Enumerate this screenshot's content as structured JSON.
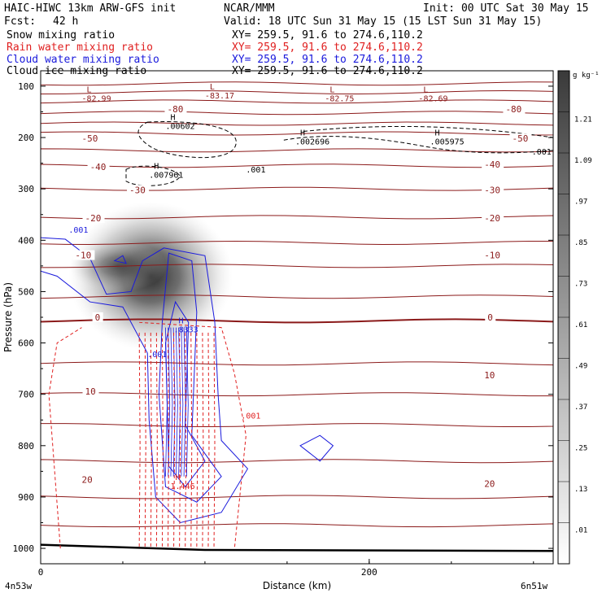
{
  "header": {
    "model": "HAIC-HIWC 13km ARW-GFS init",
    "org": "NCAR/MMM",
    "init": "Init: 00 UTC Sat 30 May 15",
    "fcst_label": "Fcst:",
    "fcst_value": "42 h",
    "valid": "Valid: 18 UTC Sun 31 May 15 (15 LST Sun 31 May 15)"
  },
  "legend": [
    {
      "name": "Snow mixing ratio",
      "xy": "XY= 259.5, 91.6 to 274.6,110.2",
      "color": "#000000"
    },
    {
      "name": "Rain water mixing ratio",
      "xy": "XY= 259.5, 91.6 to 274.6,110.2",
      "color": "#e02020"
    },
    {
      "name": "Cloud water mixing ratio",
      "xy": "XY= 259.5, 91.6 to 274.6,110.2",
      "color": "#1a1adc"
    },
    {
      "name": "Cloud ice mixing ratio",
      "xy": "XY= 259.5, 91.6 to 274.6,110.2",
      "color": "#000000"
    }
  ],
  "chart_data": {
    "type": "heatmap",
    "xlabel": "Distance (km)",
    "ylabel": "Pressure (hPa)",
    "xlim": [
      0,
      312
    ],
    "ylim": [
      1030,
      70
    ],
    "x_ticks": [
      0,
      200
    ],
    "y_ticks": [
      100,
      200,
      300,
      400,
      500,
      600,
      700,
      800,
      900,
      1000
    ],
    "x_endpoints": [
      "4n53w",
      "6n51w"
    ],
    "colorbar": {
      "unit": "g kg⁻¹",
      "labels": [
        ".01",
        ".13",
        ".25",
        ".37",
        ".49",
        ".61",
        ".73",
        ".85",
        ".97",
        "1.09",
        "1.21"
      ],
      "values": [
        0.01,
        0.13,
        0.25,
        0.37,
        0.49,
        0.61,
        0.73,
        0.85,
        0.97,
        1.09,
        1.21
      ]
    },
    "snow_shading": {
      "description": "Snow mixing ratio shaded maximum",
      "center_x": 67,
      "center_p": 470,
      "max": 1.15,
      "extent_x": [
        0,
        100
      ],
      "extent_p": [
        270,
        560
      ]
    },
    "temperature_labels": [
      {
        "x": 54,
        "p": 305,
        "text": "-30"
      },
      {
        "x": 270,
        "p": 305,
        "text": "-30"
      },
      {
        "x": 30,
        "p": 260,
        "text": "-40"
      },
      {
        "x": 270,
        "p": 255,
        "text": "-40"
      },
      {
        "x": 25,
        "p": 205,
        "text": "-50"
      },
      {
        "x": 287,
        "p": 205,
        "text": "-50"
      },
      {
        "x": 77,
        "p": 148,
        "text": "-80"
      },
      {
        "x": 283,
        "p": 148,
        "text": "-80"
      },
      {
        "x": 27,
        "p": 360,
        "text": "-20"
      },
      {
        "x": 270,
        "p": 360,
        "text": "-20"
      },
      {
        "x": 21,
        "p": 432,
        "text": "-10"
      },
      {
        "x": 270,
        "p": 432,
        "text": "-10"
      },
      {
        "x": 33,
        "p": 553,
        "text": "0"
      },
      {
        "x": 272,
        "p": 553,
        "text": "0"
      },
      {
        "x": 27,
        "p": 697,
        "text": "10"
      },
      {
        "x": 270,
        "p": 666,
        "text": "10"
      },
      {
        "x": 25,
        "p": 869,
        "text": "20"
      },
      {
        "x": 270,
        "p": 877,
        "text": "20"
      }
    ],
    "extrema_labels": [
      {
        "type": "L",
        "x": 25,
        "p": 128,
        "value": "-82.99"
      },
      {
        "type": "L",
        "x": 100,
        "p": 122,
        "value": "-83.17"
      },
      {
        "type": "L",
        "x": 173,
        "p": 128,
        "value": "-82.75"
      },
      {
        "type": "L",
        "x": 230,
        "p": 128,
        "value": "-82.69"
      },
      {
        "type": "H",
        "x": 76,
        "p": 182,
        "value": ".00602"
      },
      {
        "type": "H",
        "x": 155,
        "p": 212,
        "value": ".002696"
      },
      {
        "type": "H",
        "x": 237,
        "p": 212,
        "value": ".005975"
      },
      {
        "type": "H",
        "x": 66,
        "p": 277,
        "value": ".007961"
      },
      {
        "type": "H",
        "x": 81,
        "p": 578,
        "value": ".8333"
      },
      {
        "type": "H",
        "x": 79,
        "p": 883,
        "value": "1.446"
      }
    ],
    "contour_value_labels": [
      {
        "x": 125,
        "p": 268,
        "text": ".001",
        "series": "Cloud ice mixing ratio"
      },
      {
        "x": 299,
        "p": 233,
        "text": ".001",
        "series": "Cloud ice mixing ratio"
      },
      {
        "x": 17,
        "p": 385,
        "text": ".001",
        "series": "Cloud water mixing ratio"
      },
      {
        "x": 65,
        "p": 628,
        "text": ".001",
        "series": "Cloud water mixing ratio"
      },
      {
        "x": 122,
        "p": 747,
        "text": ".001",
        "series": "Rain water mixing ratio"
      }
    ]
  }
}
